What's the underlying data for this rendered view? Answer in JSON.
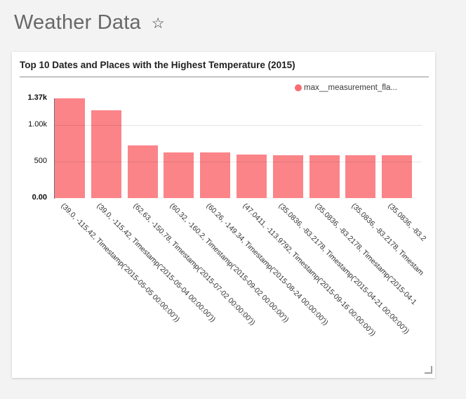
{
  "header": {
    "title": "Weather Data",
    "star_glyph": "☆"
  },
  "card": {
    "title": "Top 10 Dates and Places with the Highest Temperature (2015)",
    "legend_label": "max__measurement_fla...",
    "legend_color": "#f96d72"
  },
  "chart_data": {
    "type": "bar",
    "title": "Top 10 Dates and Places with the Highest Temperature (2015)",
    "legend": [
      "max__measurement_fla..."
    ],
    "bar_color": "#fb8488",
    "ylim": [
      0,
      1370
    ],
    "grid": true,
    "gridlines": [
      500,
      1000
    ],
    "yticks": [
      {
        "label": "1.37k",
        "value": 1370,
        "bold": true
      },
      {
        "label": "1.00k",
        "value": 1000,
        "bold": false
      },
      {
        "label": "500",
        "value": 500,
        "bold": false
      },
      {
        "label": "0.00",
        "value": 0,
        "bold": true
      }
    ],
    "categories": [
      "(39.0, -115.42, Timestamp('2015-05-05 00:00:00'))",
      "(39.0, -115.42, Timestamp('2015-05-04 00:00:00'))",
      "(62.63, -150.78, Timestamp('2015-07-02 00:00:00'))",
      "(60.32, -160.2, Timestamp('2015-09-02 00:00:00'))",
      "(60.26, -149.34, Timestamp('2015-08-24 00:00:00'))",
      "(47.0411, -113.9792, Timestamp('2015-09-16 00:00:00'))",
      "(35.0836, -83.2178, Timestamp('2015-04-21 00:00:00'))",
      "(35.0836, -83.2178, Timestamp('2015-04-1",
      "(35.0836, -83.2178, Timestam",
      "(35.0836, -83.2"
    ],
    "values": [
      1370,
      1210,
      720,
      630,
      625,
      600,
      590,
      590,
      590,
      590
    ]
  }
}
